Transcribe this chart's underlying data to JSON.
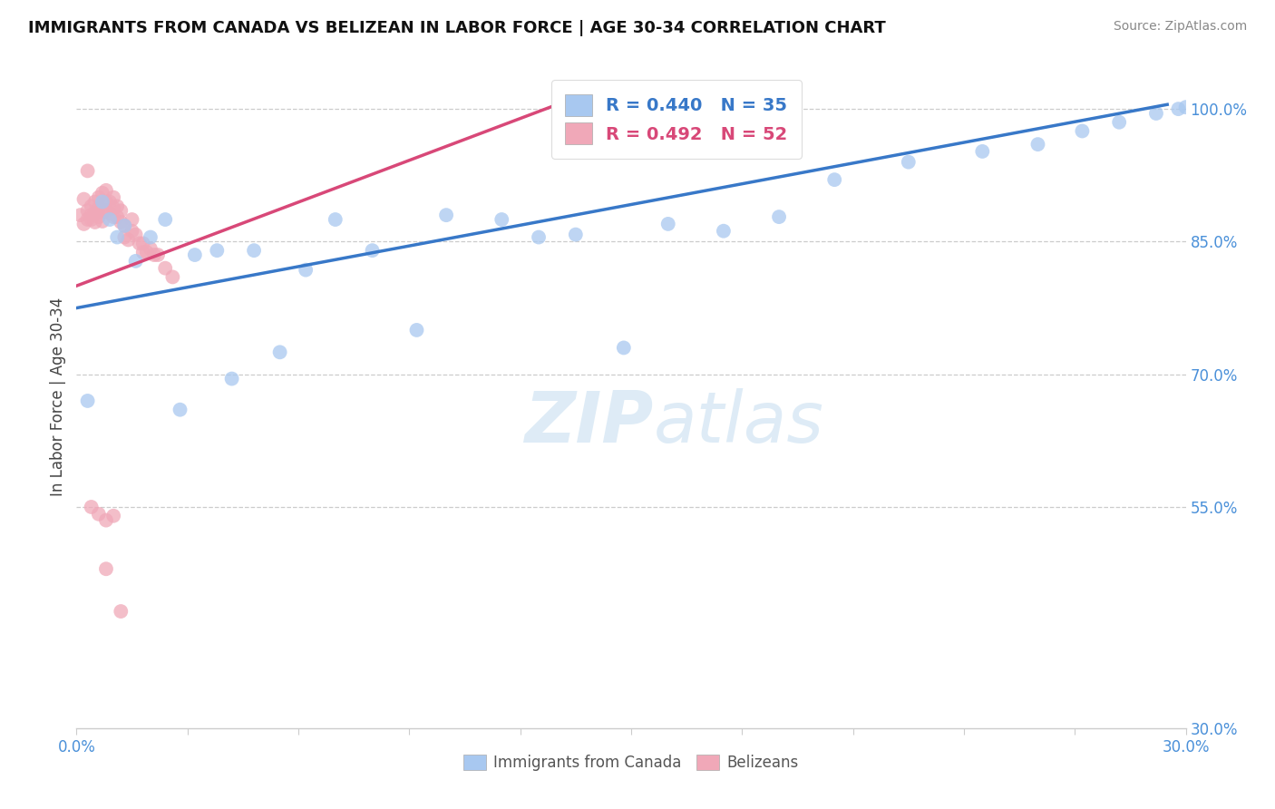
{
  "title": "IMMIGRANTS FROM CANADA VS BELIZEAN IN LABOR FORCE | AGE 30-34 CORRELATION CHART",
  "source": "Source: ZipAtlas.com",
  "ylabel": "In Labor Force | Age 30-34",
  "xlim": [
    0.0,
    0.3
  ],
  "ylim": [
    0.3,
    1.05
  ],
  "canada_R": 0.44,
  "canada_N": 35,
  "belize_R": 0.492,
  "belize_N": 52,
  "canada_color": "#a8c8f0",
  "belize_color": "#f0a8b8",
  "canada_line_color": "#3878c8",
  "belize_line_color": "#d84878",
  "canada_line_x0": 0.0,
  "canada_line_y0": 0.775,
  "canada_line_x1": 0.295,
  "canada_line_y1": 1.005,
  "belize_line_x0": 0.0,
  "belize_line_y0": 0.8,
  "belize_line_x1": 0.13,
  "belize_line_y1": 1.005,
  "canada_x": [
    0.003,
    0.007,
    0.009,
    0.011,
    0.013,
    0.016,
    0.02,
    0.024,
    0.028,
    0.032,
    0.038,
    0.042,
    0.048,
    0.055,
    0.062,
    0.07,
    0.08,
    0.092,
    0.1,
    0.115,
    0.125,
    0.135,
    0.148,
    0.16,
    0.175,
    0.19,
    0.205,
    0.225,
    0.245,
    0.26,
    0.272,
    0.282,
    0.292,
    0.298,
    0.3
  ],
  "canada_y": [
    0.67,
    0.895,
    0.875,
    0.855,
    0.868,
    0.828,
    0.855,
    0.875,
    0.66,
    0.835,
    0.84,
    0.695,
    0.84,
    0.725,
    0.818,
    0.875,
    0.84,
    0.75,
    0.88,
    0.875,
    0.855,
    0.858,
    0.73,
    0.87,
    0.862,
    0.878,
    0.92,
    0.94,
    0.952,
    0.96,
    0.975,
    0.985,
    0.995,
    1.0,
    1.002
  ],
  "belize_x": [
    0.001,
    0.002,
    0.002,
    0.003,
    0.003,
    0.004,
    0.004,
    0.004,
    0.005,
    0.005,
    0.005,
    0.006,
    0.006,
    0.006,
    0.007,
    0.007,
    0.007,
    0.007,
    0.008,
    0.008,
    0.008,
    0.009,
    0.009,
    0.01,
    0.01,
    0.01,
    0.011,
    0.011,
    0.012,
    0.012,
    0.013,
    0.013,
    0.014,
    0.015,
    0.015,
    0.016,
    0.017,
    0.018,
    0.018,
    0.019,
    0.02,
    0.021,
    0.022,
    0.024,
    0.026,
    0.004,
    0.006,
    0.008,
    0.01,
    0.003,
    0.008,
    0.012
  ],
  "belize_y": [
    0.88,
    0.87,
    0.898,
    0.885,
    0.875,
    0.89,
    0.88,
    0.875,
    0.895,
    0.882,
    0.872,
    0.9,
    0.888,
    0.878,
    0.905,
    0.893,
    0.883,
    0.873,
    0.908,
    0.895,
    0.885,
    0.895,
    0.882,
    0.9,
    0.888,
    0.878,
    0.89,
    0.878,
    0.885,
    0.872,
    0.868,
    0.855,
    0.852,
    0.862,
    0.875,
    0.858,
    0.848,
    0.848,
    0.838,
    0.838,
    0.842,
    0.835,
    0.835,
    0.82,
    0.81,
    0.55,
    0.542,
    0.535,
    0.54,
    0.93,
    0.48,
    0.432
  ]
}
